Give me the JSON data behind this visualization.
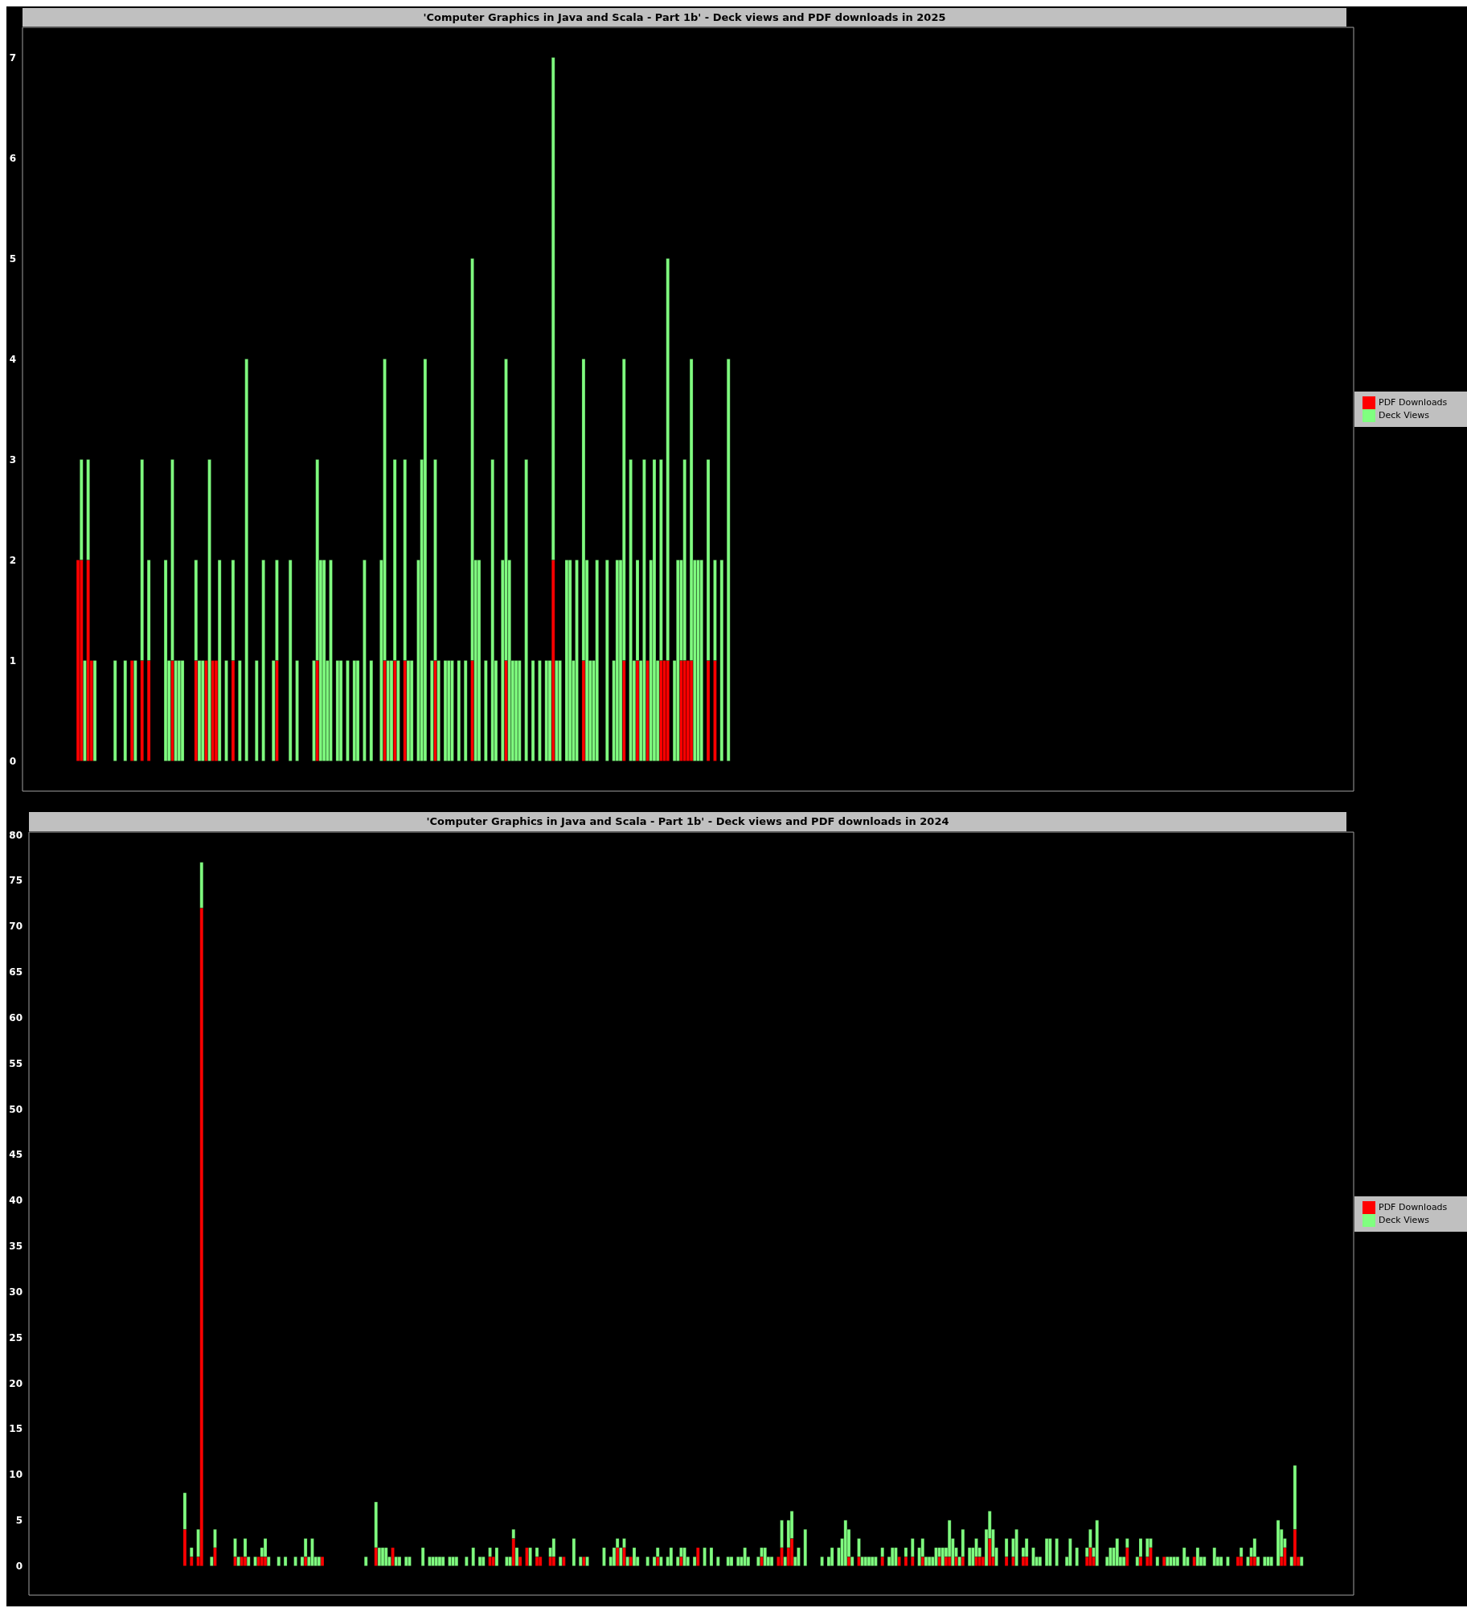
{
  "chart_data": [
    {
      "type": "bar",
      "title": "'Computer Graphics in Java and Scala - Part 1b' - Deck views and PDF downloads in 2025",
      "stacked": true,
      "legend": "right",
      "tick_labels": "y",
      "ylim": [
        -0.3,
        7.3
      ],
      "yticks": [
        0,
        1,
        2,
        3,
        4,
        5,
        6,
        7
      ],
      "categories": [
        null,
        null,
        null,
        null,
        null,
        null,
        null,
        null,
        null,
        null,
        null,
        null,
        null,
        null,
        null,
        null,
        null,
        null,
        null,
        null,
        null,
        null,
        null,
        null,
        null,
        null,
        null,
        null,
        null,
        null,
        null,
        null,
        null,
        null,
        null,
        null,
        null,
        null,
        null,
        null,
        null,
        null,
        null,
        null,
        null,
        null,
        null,
        null,
        null,
        null,
        null,
        null,
        null,
        null,
        null,
        null,
        null,
        null,
        null,
        null,
        null,
        null,
        null,
        null,
        null,
        null,
        null,
        null,
        null,
        null,
        null,
        null,
        null,
        null,
        null,
        null,
        null,
        null,
        null,
        null,
        null,
        null,
        null,
        null,
        null,
        null,
        null,
        null,
        null,
        null,
        null,
        null,
        null,
        null,
        null,
        null,
        null,
        null,
        null,
        null,
        null,
        null,
        null,
        null,
        null,
        null,
        null,
        null,
        null,
        null,
        null,
        null,
        null,
        null,
        null,
        null,
        null,
        null,
        null,
        null,
        null,
        null,
        null,
        null,
        null,
        null,
        null,
        null,
        null,
        null,
        null,
        null,
        null,
        null,
        null,
        null,
        null,
        null,
        null,
        null,
        null,
        null,
        null,
        null,
        null,
        null,
        null,
        null,
        null,
        null,
        null,
        null,
        null,
        null,
        null,
        null,
        null,
        null,
        null,
        null,
        null,
        null,
        null,
        null,
        null,
        null,
        null,
        null,
        null,
        null,
        null,
        null,
        null,
        null,
        null,
        null,
        null,
        null,
        null,
        null,
        null,
        null,
        null,
        null,
        null,
        null,
        null,
        null,
        null,
        null,
        null,
        null,
        null,
        null,
        null,
        null,
        null,
        null,
        null,
        null,
        null,
        null,
        null,
        null,
        null,
        null,
        null,
        null,
        null,
        null,
        null,
        null,
        null,
        null,
        null,
        null,
        null,
        null,
        null,
        null,
        null,
        null,
        null,
        null,
        null,
        null,
        null,
        null,
        null,
        null,
        null,
        null,
        null,
        null,
        null,
        null,
        null,
        null,
        null,
        null,
        null,
        null,
        null,
        null,
        null,
        null,
        null,
        null,
        null,
        null,
        null,
        null,
        null,
        null,
        null,
        null,
        null,
        null,
        null,
        null,
        null,
        null,
        null,
        null,
        null,
        null,
        null,
        null,
        null,
        null,
        null,
        null,
        null,
        null,
        null,
        null,
        null,
        null,
        null,
        null,
        null,
        null,
        null,
        null,
        null,
        null,
        null,
        null,
        null,
        null,
        null,
        null,
        null,
        null,
        null,
        null,
        null,
        null,
        null,
        null,
        null,
        null,
        null,
        null,
        null,
        null,
        null,
        null,
        null,
        null,
        null,
        null,
        null,
        null,
        null,
        null,
        null,
        null,
        null,
        null,
        null,
        null,
        null,
        null,
        null,
        null,
        null,
        null,
        null,
        null,
        null,
        null,
        null,
        null,
        null,
        null,
        null,
        null,
        null,
        null,
        null,
        null,
        null,
        null,
        null,
        null,
        null,
        null,
        null,
        null,
        null,
        null,
        null,
        null,
        null,
        null,
        null,
        null,
        null,
        null,
        null,
        null,
        null,
        null,
        null,
        null,
        null,
        null,
        null,
        null,
        null,
        null,
        null,
        null,
        null,
        null,
        null,
        null,
        null,
        null,
        null,
        null,
        null,
        null,
        null,
        null,
        null,
        null,
        null,
        null,
        null,
        null,
        null,
        null,
        null
      ],
      "series": [
        {
          "name": "PDF Downloads",
          "color": "#ff0000",
          "values": [
            null,
            null,
            null,
            null,
            null,
            null,
            null,
            null,
            null,
            null,
            null,
            null,
            null,
            null,
            null,
            null,
            2,
            2,
            0,
            2,
            1,
            0,
            0,
            0,
            0,
            0,
            0,
            0,
            0,
            0,
            0,
            0,
            1,
            0,
            0,
            1,
            0,
            1,
            0,
            0,
            0,
            0,
            0,
            0,
            1,
            0,
            0,
            0,
            0,
            0,
            0,
            1,
            0,
            0,
            1,
            0,
            1,
            1,
            0,
            0,
            0,
            0,
            1,
            0,
            0,
            0,
            0,
            0,
            0,
            0,
            0,
            0,
            0,
            0,
            0,
            1,
            0,
            0,
            0,
            0,
            0,
            0,
            0,
            0,
            0,
            0,
            0,
            1,
            0,
            0,
            0,
            0,
            0,
            0,
            0,
            0,
            0,
            0,
            0,
            0,
            0,
            0,
            0,
            0,
            0,
            0,
            0,
            1,
            0,
            0,
            1,
            0,
            0,
            1,
            0,
            0,
            0,
            0,
            0,
            0,
            0,
            0,
            1,
            0,
            0,
            0,
            0,
            0,
            0,
            0,
            0,
            0,
            0,
            1,
            0,
            0,
            0,
            0,
            0,
            0,
            0,
            0,
            0,
            1,
            0,
            0,
            0,
            0,
            0,
            0,
            0,
            0,
            0,
            0,
            0,
            0,
            0,
            2,
            0,
            0,
            0,
            0,
            0,
            0,
            0,
            0,
            1,
            0,
            0,
            0,
            0,
            0,
            0,
            0,
            0,
            0,
            0,
            0,
            1,
            0,
            0,
            0,
            1,
            0,
            0,
            1,
            0,
            0,
            0,
            1,
            1,
            1,
            0,
            0,
            0,
            1,
            1,
            1,
            1,
            0,
            0,
            0,
            0,
            1,
            0,
            1,
            0,
            0,
            0,
            0,
            null,
            null,
            null,
            null,
            null,
            null,
            null,
            null,
            null,
            null,
            null,
            null,
            null,
            null,
            null,
            null,
            null,
            null,
            null,
            null,
            null,
            null,
            null,
            null,
            null,
            null,
            null,
            null,
            null,
            null,
            null,
            null,
            null,
            null,
            null,
            null,
            null,
            null,
            null,
            null,
            null,
            null,
            null,
            null,
            null,
            null,
            null,
            null,
            null,
            null,
            null,
            null,
            null,
            null,
            null,
            null,
            null,
            null,
            null,
            null,
            null,
            null,
            null,
            null,
            null,
            null,
            null,
            null,
            null,
            null,
            null,
            null,
            null,
            null,
            null,
            null,
            null,
            null,
            null,
            null,
            null,
            null,
            null,
            null,
            null,
            null,
            null,
            null,
            null,
            null,
            null,
            null,
            null,
            null,
            null,
            null,
            null,
            null,
            null,
            null,
            null,
            null,
            null,
            null,
            null,
            null,
            null,
            null,
            null,
            null,
            null,
            null,
            null,
            null,
            null,
            null,
            null,
            null,
            null,
            null,
            null,
            null,
            null,
            null,
            null,
            null,
            null,
            null,
            null,
            null,
            null,
            null,
            null,
            null,
            null,
            null,
            null,
            null,
            null,
            null,
            null,
            null,
            null,
            null,
            null,
            null,
            null,
            null,
            null,
            null,
            null,
            null,
            null,
            null,
            null,
            null,
            null,
            null,
            null,
            null,
            null,
            null,
            null,
            null,
            null,
            null,
            null,
            null,
            null,
            null,
            null,
            null,
            null,
            null,
            null,
            null,
            null,
            null,
            null,
            null,
            null,
            null,
            null,
            null,
            null
          ]
        },
        {
          "name": "Deck Views",
          "color": "#80ff80",
          "values": [
            null,
            null,
            null,
            null,
            null,
            null,
            null,
            null,
            null,
            null,
            null,
            null,
            null,
            null,
            null,
            null,
            0,
            1,
            1,
            1,
            0,
            1,
            0,
            0,
            0,
            0,
            0,
            1,
            0,
            0,
            1,
            0,
            0,
            1,
            0,
            2,
            0,
            1,
            0,
            0,
            0,
            0,
            2,
            1,
            2,
            1,
            1,
            1,
            0,
            0,
            0,
            1,
            1,
            1,
            0,
            3,
            0,
            0,
            2,
            0,
            1,
            0,
            1,
            0,
            1,
            0,
            4,
            0,
            0,
            1,
            0,
            2,
            0,
            0,
            1,
            1,
            0,
            0,
            0,
            2,
            0,
            1,
            0,
            0,
            0,
            0,
            1,
            2,
            2,
            2,
            1,
            2,
            0,
            1,
            1,
            0,
            1,
            0,
            1,
            1,
            0,
            2,
            0,
            1,
            0,
            0,
            2,
            3,
            1,
            1,
            2,
            1,
            0,
            2,
            1,
            1,
            0,
            2,
            3,
            4,
            0,
            1,
            2,
            1,
            0,
            1,
            1,
            1,
            0,
            1,
            0,
            1,
            0,
            4,
            2,
            2,
            0,
            1,
            0,
            3,
            1,
            0,
            2,
            3,
            2,
            1,
            1,
            1,
            0,
            3,
            0,
            1,
            0,
            1,
            0,
            1,
            1,
            5,
            1,
            1,
            0,
            2,
            2,
            1,
            2,
            0,
            3,
            2,
            1,
            1,
            2,
            0,
            0,
            2,
            0,
            1,
            2,
            2,
            3,
            0,
            3,
            1,
            1,
            1,
            3,
            0,
            2,
            3,
            1,
            2,
            0,
            4,
            0,
            1,
            2,
            1,
            2,
            0,
            3,
            2,
            2,
            2,
            0,
            2,
            0,
            1,
            0,
            2,
            0,
            4,
            null,
            null,
            null,
            null,
            null,
            null,
            null,
            null,
            null,
            null,
            null,
            null,
            null,
            null,
            null,
            null,
            null,
            null,
            null,
            null,
            null,
            null,
            null,
            null,
            null,
            null,
            null,
            null,
            null,
            null,
            null,
            null,
            null,
            null,
            null,
            null,
            null,
            null,
            null,
            null,
            null,
            null,
            null,
            null,
            null,
            null,
            null,
            null,
            null,
            null,
            null,
            null,
            null,
            null,
            null,
            null,
            null,
            null,
            null,
            null,
            null,
            null,
            null,
            null,
            null,
            null,
            null,
            null,
            null,
            null,
            null,
            null,
            null,
            null,
            null,
            null,
            null,
            null,
            null,
            null,
            null,
            null,
            null,
            null,
            null,
            null,
            null,
            null,
            null,
            null,
            null,
            null,
            null,
            null,
            null,
            null,
            null,
            null,
            null,
            null,
            null,
            null,
            null,
            null,
            null,
            null,
            null,
            null,
            null,
            null,
            null,
            null,
            null,
            null,
            null,
            null,
            null,
            null,
            null,
            null,
            null,
            null,
            null,
            null,
            null,
            null,
            null,
            null,
            null,
            null,
            null,
            null,
            null,
            null,
            null,
            null,
            null,
            null,
            null,
            null,
            null,
            null,
            null,
            null,
            null,
            null,
            null,
            null,
            null,
            null,
            null,
            null,
            null,
            null,
            null,
            null,
            null,
            null,
            null,
            null,
            null,
            null,
            null,
            null,
            null,
            null,
            null,
            null,
            null,
            null,
            null,
            null,
            null,
            null,
            null,
            null,
            null,
            null,
            null,
            null,
            null,
            null,
            null,
            null,
            null
          ]
        }
      ]
    },
    {
      "type": "bar",
      "title": "'Computer Graphics in Java and Scala - Part 1b' - Deck views and PDF downloads in 2024",
      "stacked": true,
      "legend": "right",
      "tick_labels": "y",
      "ylim": [
        -3.2,
        80.3
      ],
      "yticks": [
        0,
        5,
        10,
        15,
        20,
        25,
        30,
        35,
        40,
        45,
        50,
        55,
        60,
        65,
        70,
        75,
        80
      ],
      "categories": [
        null,
        null,
        null,
        null,
        null,
        null,
        null,
        null,
        null,
        null,
        null,
        null,
        null,
        null,
        null,
        null,
        null,
        null,
        null,
        null,
        null,
        null,
        null,
        null,
        null,
        null,
        null,
        null,
        null,
        null,
        null,
        null,
        null,
        null,
        null,
        null,
        null,
        null,
        null,
        null,
        null,
        null,
        null,
        null,
        null,
        null,
        null,
        null,
        null,
        null,
        null,
        null,
        null,
        null,
        null,
        null,
        null,
        null,
        null,
        null,
        null,
        null,
        null,
        null,
        null,
        null,
        null,
        null,
        null,
        null,
        null,
        null,
        null,
        null,
        null,
        null,
        null,
        null,
        null,
        null,
        null,
        null,
        null,
        null,
        null,
        null,
        null,
        null,
        null,
        null,
        null,
        null,
        null,
        null,
        null,
        null,
        null,
        null,
        null,
        null,
        null,
        null,
        null,
        null,
        null,
        null,
        null,
        null,
        null,
        null,
        null,
        null,
        null,
        null,
        null,
        null,
        null,
        null,
        null,
        null,
        null,
        null,
        null,
        null,
        null,
        null,
        null,
        null,
        null,
        null,
        null,
        null,
        null,
        null,
        null,
        null,
        null,
        null,
        null,
        null,
        null,
        null,
        null,
        null,
        null,
        null,
        null,
        null,
        null,
        null,
        null,
        null,
        null,
        null,
        null,
        null,
        null,
        null,
        null,
        null,
        null,
        null,
        null,
        null,
        null,
        null,
        null,
        null,
        null,
        null,
        null,
        null,
        null,
        null,
        null,
        null,
        null,
        null,
        null,
        null,
        null,
        null,
        null,
        null,
        null,
        null,
        null,
        null,
        null,
        null,
        null,
        null,
        null,
        null,
        null,
        null,
        null,
        null,
        null,
        null,
        null,
        null,
        null,
        null,
        null,
        null,
        null,
        null,
        null,
        null,
        null,
        null,
        null,
        null,
        null,
        null,
        null,
        null,
        null,
        null,
        null,
        null,
        null,
        null,
        null,
        null,
        null,
        null,
        null,
        null,
        null,
        null,
        null,
        null,
        null,
        null,
        null,
        null,
        null,
        null,
        null,
        null,
        null,
        null,
        null,
        null,
        null,
        null,
        null,
        null,
        null,
        null,
        null,
        null,
        null,
        null,
        null,
        null,
        null,
        null,
        null,
        null,
        null,
        null,
        null,
        null,
        null,
        null,
        null,
        null,
        null,
        null,
        null,
        null,
        null,
        null,
        null,
        null,
        null,
        null,
        null,
        null,
        null,
        null,
        null,
        null,
        null,
        null,
        null,
        null,
        null,
        null,
        null,
        null,
        null,
        null,
        null,
        null,
        null,
        null,
        null,
        null,
        null,
        null,
        null,
        null,
        null,
        null,
        null,
        null,
        null,
        null,
        null,
        null,
        null,
        null,
        null,
        null,
        null,
        null,
        null,
        null,
        null,
        null,
        null,
        null,
        null,
        null,
        null,
        null,
        null,
        null,
        null,
        null,
        null,
        null,
        null,
        null,
        null,
        null,
        null,
        null,
        null,
        null,
        null,
        null,
        null,
        null,
        null,
        null,
        null,
        null,
        null,
        null,
        null,
        null,
        null,
        null,
        null,
        null,
        null,
        null,
        null,
        null,
        null,
        null,
        null,
        null,
        null,
        null,
        null,
        null,
        null,
        null,
        null,
        null,
        null,
        null,
        null,
        null,
        null,
        null,
        null,
        null,
        null,
        null,
        null,
        null,
        null,
        null,
        null,
        null,
        null,
        null,
        null
      ],
      "series": [
        {
          "name": "PDF Downloads",
          "color": "#ff0000",
          "values": [
            null,
            null,
            null,
            null,
            null,
            null,
            null,
            null,
            null,
            null,
            null,
            null,
            null,
            null,
            null,
            null,
            null,
            null,
            null,
            null,
            null,
            null,
            null,
            null,
            null,
            null,
            null,
            null,
            null,
            null,
            null,
            null,
            null,
            null,
            null,
            null,
            null,
            null,
            null,
            null,
            null,
            null,
            null,
            null,
            null,
            null,
            4,
            0,
            1,
            0,
            1,
            72,
            0,
            0,
            0,
            2,
            0,
            0,
            0,
            0,
            0,
            1,
            0,
            1,
            1,
            0,
            0,
            0,
            1,
            1,
            1,
            0,
            0,
            0,
            0,
            0,
            0,
            0,
            0,
            0,
            0,
            0,
            1,
            0,
            0,
            0,
            0,
            1,
            0,
            0,
            0,
            0,
            0,
            0,
            0,
            0,
            0,
            0,
            0,
            0,
            0,
            0,
            0,
            2,
            0,
            0,
            0,
            0,
            2,
            0,
            0,
            0,
            0,
            0,
            0,
            0,
            0,
            0,
            0,
            0,
            0,
            0,
            0,
            0,
            0,
            0,
            0,
            0,
            0,
            0,
            0,
            0,
            0,
            0,
            0,
            0,
            0,
            1,
            1,
            0,
            0,
            0,
            0,
            0,
            3,
            0,
            1,
            0,
            2,
            0,
            0,
            1,
            1,
            0,
            0,
            1,
            1,
            0,
            0,
            1,
            0,
            0,
            0,
            0,
            0,
            1,
            0,
            0,
            0,
            0,
            0,
            0,
            0,
            0,
            0,
            2,
            0,
            2,
            0,
            1,
            0,
            0,
            0,
            0,
            0,
            0,
            0,
            1,
            0,
            0,
            0,
            0,
            0,
            0,
            1,
            0,
            0,
            0,
            0,
            2,
            0,
            0,
            0,
            0,
            0,
            0,
            0,
            0,
            0,
            0,
            0,
            0,
            0,
            0,
            0,
            0,
            0,
            0,
            1,
            0,
            0,
            0,
            0,
            1,
            2,
            0,
            2,
            3,
            0,
            0,
            0,
            0,
            0,
            0,
            0,
            0,
            0,
            0,
            0,
            0,
            0,
            0,
            0,
            0,
            1,
            0,
            0,
            1,
            0,
            0,
            0,
            0,
            0,
            0,
            1,
            0,
            0,
            0,
            0,
            1,
            0,
            1,
            0,
            1,
            0,
            0,
            1,
            0,
            0,
            0,
            0,
            1,
            0,
            1,
            1,
            0,
            1,
            0,
            1,
            0,
            0,
            0,
            1,
            1,
            1,
            0,
            3,
            1,
            0,
            0,
            0,
            1,
            0,
            1,
            0,
            0,
            1,
            1,
            0,
            0,
            0,
            0,
            0,
            0,
            0,
            0,
            0,
            0,
            0,
            0,
            0,
            0,
            0,
            0,
            0,
            1,
            2,
            1,
            0,
            0,
            0,
            0,
            0,
            0,
            0,
            0,
            0,
            2,
            0,
            0,
            0,
            1,
            0,
            1,
            2,
            0,
            0,
            0,
            1,
            0,
            0,
            0,
            0,
            0,
            0,
            0,
            0,
            1,
            0,
            0,
            0,
            0,
            0,
            0,
            0,
            0,
            0,
            0,
            0,
            0,
            1,
            1,
            0,
            0,
            1,
            1,
            0,
            0,
            0,
            0,
            0,
            0,
            0,
            1,
            2,
            0,
            0,
            4,
            1,
            0,
            null,
            null,
            null,
            null,
            null,
            null,
            null,
            null,
            null,
            null,
            null,
            null,
            null,
            null,
            null
          ]
        },
        {
          "name": "Deck Views",
          "color": "#80ff80",
          "values": [
            null,
            null,
            null,
            null,
            null,
            null,
            null,
            null,
            null,
            null,
            null,
            null,
            null,
            null,
            null,
            null,
            null,
            null,
            null,
            null,
            null,
            null,
            null,
            null,
            null,
            null,
            null,
            null,
            null,
            null,
            null,
            null,
            null,
            null,
            null,
            null,
            null,
            null,
            null,
            null,
            null,
            null,
            null,
            null,
            null,
            null,
            4,
            0,
            1,
            0,
            3,
            5,
            0,
            0,
            1,
            2,
            0,
            0,
            0,
            0,
            0,
            2,
            1,
            0,
            2,
            1,
            0,
            1,
            0,
            1,
            2,
            1,
            0,
            0,
            1,
            0,
            1,
            0,
            0,
            1,
            0,
            1,
            2,
            1,
            3,
            1,
            1,
            0,
            0,
            0,
            0,
            0,
            0,
            0,
            0,
            0,
            0,
            0,
            0,
            0,
            1,
            0,
            0,
            5,
            2,
            2,
            2,
            1,
            0,
            1,
            1,
            0,
            1,
            1,
            0,
            0,
            0,
            2,
            0,
            1,
            1,
            1,
            1,
            1,
            0,
            1,
            1,
            1,
            0,
            0,
            1,
            0,
            2,
            0,
            1,
            1,
            0,
            1,
            0,
            2,
            0,
            0,
            1,
            1,
            1,
            2,
            0,
            0,
            0,
            2,
            0,
            1,
            0,
            0,
            0,
            1,
            2,
            0,
            1,
            0,
            0,
            0,
            3,
            0,
            1,
            0,
            1,
            0,
            0,
            0,
            0,
            2,
            0,
            1,
            2,
            1,
            2,
            1,
            1,
            0,
            2,
            1,
            0,
            0,
            1,
            0,
            1,
            1,
            1,
            0,
            1,
            2,
            0,
            1,
            1,
            2,
            1,
            0,
            1,
            0,
            0,
            2,
            0,
            2,
            0,
            1,
            0,
            0,
            1,
            1,
            0,
            1,
            1,
            2,
            1,
            0,
            0,
            1,
            1,
            2,
            1,
            1,
            0,
            0,
            3,
            1,
            3,
            3,
            1,
            2,
            0,
            4,
            0,
            0,
            0,
            0,
            1,
            0,
            1,
            2,
            0,
            2,
            3,
            5,
            3,
            1,
            0,
            2,
            1,
            1,
            1,
            1,
            1,
            0,
            1,
            0,
            1,
            2,
            2,
            0,
            0,
            1,
            0,
            2,
            0,
            2,
            2,
            1,
            1,
            1,
            2,
            1,
            2,
            1,
            4,
            3,
            1,
            1,
            3,
            0,
            2,
            2,
            2,
            1,
            0,
            4,
            3,
            3,
            2,
            0,
            0,
            2,
            0,
            2,
            4,
            0,
            1,
            2,
            0,
            2,
            1,
            1,
            0,
            3,
            3,
            0,
            3,
            0,
            0,
            1,
            3,
            0,
            2,
            0,
            0,
            1,
            2,
            1,
            5,
            0,
            0,
            1,
            2,
            2,
            3,
            1,
            1,
            1,
            0,
            0,
            1,
            2,
            0,
            2,
            1,
            0,
            1,
            0,
            0,
            1,
            1,
            1,
            1,
            0,
            2,
            1,
            0,
            0,
            2,
            1,
            1,
            0,
            0,
            2,
            1,
            1,
            0,
            1,
            0,
            0,
            0,
            1,
            0,
            1,
            1,
            2,
            1,
            0,
            1,
            1,
            1,
            0,
            5,
            3,
            1,
            0,
            1,
            7,
            0,
            1,
            null,
            null,
            null,
            null,
            null,
            null,
            null,
            null,
            null,
            null,
            null,
            null,
            null,
            null,
            null
          ]
        }
      ]
    }
  ]
}
